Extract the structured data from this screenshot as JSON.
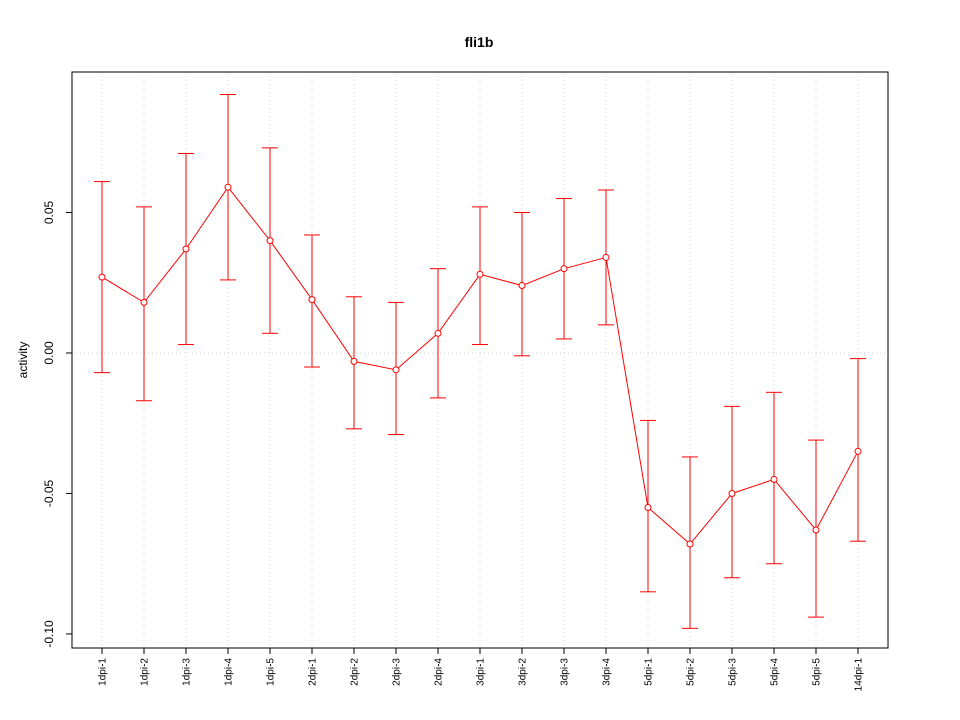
{
  "chart_data": {
    "type": "line",
    "title": "fli1b",
    "xlabel": "",
    "ylabel": "activity",
    "categories": [
      "1dpi-1",
      "1dpi-2",
      "1dpi-3",
      "1dpi-4",
      "1dpi-5",
      "2dpi-1",
      "2dpi-2",
      "2dpi-3",
      "2dpi-4",
      "3dpi-1",
      "3dpi-2",
      "3dpi-3",
      "3dpi-4",
      "5dpi-1",
      "5dpi-2",
      "5dpi-3",
      "5dpi-4",
      "5dpi-5",
      "14dpi-1"
    ],
    "series": [
      {
        "values": [
          0.027,
          0.018,
          0.037,
          0.059,
          0.04,
          0.019,
          -0.003,
          -0.006,
          0.007,
          0.028,
          0.024,
          0.03,
          0.034,
          -0.055,
          -0.068,
          -0.05,
          -0.045,
          -0.063,
          -0.035
        ],
        "lower": [
          -0.007,
          -0.017,
          0.003,
          0.026,
          0.007,
          -0.005,
          -0.027,
          -0.029,
          -0.016,
          0.003,
          -0.001,
          0.005,
          0.01,
          -0.085,
          -0.098,
          -0.08,
          -0.075,
          -0.094,
          -0.067
        ],
        "upper": [
          0.061,
          0.052,
          0.071,
          0.092,
          0.073,
          0.042,
          0.02,
          0.018,
          0.03,
          0.052,
          0.05,
          0.055,
          0.058,
          -0.024,
          -0.037,
          -0.019,
          -0.014,
          -0.031,
          -0.002
        ],
        "color": "#ff0000"
      }
    ],
    "yticks": [
      "-0.10",
      "-0.05",
      "0.00",
      "0.05"
    ],
    "ylim": [
      -0.105,
      0.1
    ],
    "grid": true,
    "grid_color": "#d3d3d3"
  }
}
